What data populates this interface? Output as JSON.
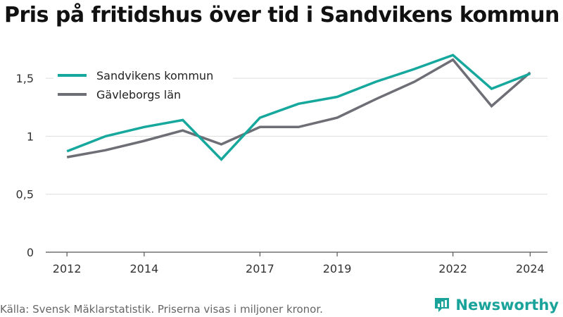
{
  "title": "Pris på fritidshus över tid i Sandvikens kommun",
  "footer": {
    "source": "Källa: Svensk Mäklarstatistik. Priserna visas i miljoner kronor.",
    "brand": "Newsworthy"
  },
  "colors": {
    "sandviken": "#16a79d",
    "gavleborg": "#6e6e76",
    "grid": "#dddddd",
    "axis": "#555555"
  },
  "chart_data": {
    "type": "line",
    "x": [
      2012,
      2013,
      2014,
      2015,
      2016,
      2017,
      2018,
      2019,
      2020,
      2021,
      2022,
      2023,
      2024
    ],
    "x_ticks": [
      2012,
      2014,
      2017,
      2019,
      2022,
      2024
    ],
    "y_ticks": [
      0,
      0.5,
      1,
      1.5
    ],
    "y_tick_labels": [
      "0",
      "0,5",
      "1",
      "1,5"
    ],
    "ylim": [
      0,
      1.75
    ],
    "xlim": [
      2012,
      2024
    ],
    "grid": "horizontal",
    "legend_position": "top-left",
    "series": [
      {
        "name": "Sandvikens kommun",
        "color_key": "sandviken",
        "values": [
          0.87,
          1.0,
          1.08,
          1.14,
          0.8,
          1.16,
          1.28,
          1.34,
          1.47,
          1.58,
          1.7,
          1.41,
          1.54
        ]
      },
      {
        "name": "Gävleborgs län",
        "color_key": "gavleborg",
        "values": [
          0.82,
          0.88,
          0.96,
          1.05,
          0.93,
          1.08,
          1.08,
          1.16,
          1.32,
          1.47,
          1.66,
          1.26,
          1.55
        ]
      }
    ]
  }
}
